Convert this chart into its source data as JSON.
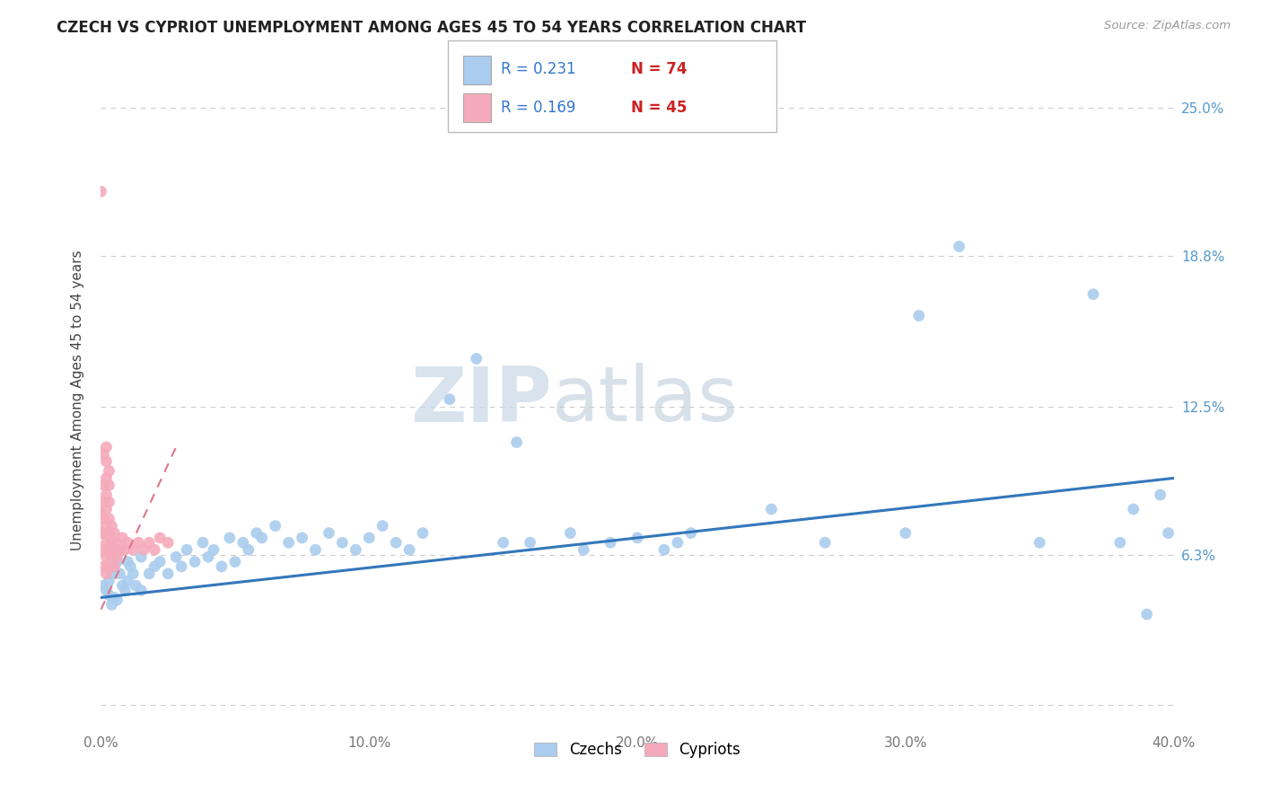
{
  "title": "CZECH VS CYPRIOT UNEMPLOYMENT AMONG AGES 45 TO 54 YEARS CORRELATION CHART",
  "source": "Source: ZipAtlas.com",
  "ylabel": "Unemployment Among Ages 45 to 54 years",
  "xlim": [
    0.0,
    0.4
  ],
  "ylim": [
    -0.01,
    0.265
  ],
  "xtick_vals": [
    0.0,
    0.1,
    0.2,
    0.3,
    0.4
  ],
  "xticklabels": [
    "0.0%",
    "10.0%",
    "20.0%",
    "30.0%",
    "40.0%"
  ],
  "ytick_vals": [
    0.0,
    0.063,
    0.125,
    0.188,
    0.25
  ],
  "yticklabels": [
    "",
    "6.3%",
    "12.5%",
    "18.8%",
    "25.0%"
  ],
  "czech_R": 0.231,
  "czech_N": 74,
  "cypriot_R": 0.169,
  "cypriot_N": 45,
  "czech_color": "#aaccee",
  "cypriot_color": "#f5aabb",
  "czech_line_color": "#3377bb",
  "cypriot_line_color": "#dd7788",
  "legend_R_color": "#3377cc",
  "legend_N_color": "#cc2222",
  "watermark_zip": "ZIP",
  "watermark_atlas": "atlas",
  "background_color": "#ffffff",
  "grid_color": "#cccccc",
  "czech_x": [
    0.001,
    0.002,
    0.003,
    0.003,
    0.004,
    0.004,
    0.005,
    0.005,
    0.006,
    0.006,
    0.007,
    0.008,
    0.009,
    0.01,
    0.01,
    0.011,
    0.012,
    0.013,
    0.015,
    0.015,
    0.018,
    0.02,
    0.022,
    0.025,
    0.028,
    0.03,
    0.032,
    0.035,
    0.038,
    0.04,
    0.042,
    0.045,
    0.048,
    0.05,
    0.053,
    0.055,
    0.058,
    0.06,
    0.065,
    0.07,
    0.075,
    0.08,
    0.085,
    0.09,
    0.095,
    0.1,
    0.105,
    0.11,
    0.115,
    0.12,
    0.13,
    0.14,
    0.15,
    0.155,
    0.16,
    0.175,
    0.18,
    0.19,
    0.2,
    0.21,
    0.215,
    0.22,
    0.25,
    0.27,
    0.3,
    0.305,
    0.32,
    0.35,
    0.37,
    0.38,
    0.385,
    0.39,
    0.395,
    0.398
  ],
  "czech_y": [
    0.05,
    0.048,
    0.052,
    0.046,
    0.055,
    0.042,
    0.058,
    0.045,
    0.06,
    0.044,
    0.055,
    0.05,
    0.048,
    0.052,
    0.06,
    0.058,
    0.055,
    0.05,
    0.062,
    0.048,
    0.055,
    0.058,
    0.06,
    0.055,
    0.062,
    0.058,
    0.065,
    0.06,
    0.068,
    0.062,
    0.065,
    0.058,
    0.07,
    0.06,
    0.068,
    0.065,
    0.072,
    0.07,
    0.075,
    0.068,
    0.07,
    0.065,
    0.072,
    0.068,
    0.065,
    0.07,
    0.075,
    0.068,
    0.065,
    0.072,
    0.128,
    0.145,
    0.068,
    0.11,
    0.068,
    0.072,
    0.065,
    0.068,
    0.07,
    0.065,
    0.068,
    0.072,
    0.082,
    0.068,
    0.072,
    0.163,
    0.192,
    0.068,
    0.172,
    0.068,
    0.082,
    0.038,
    0.088,
    0.072
  ],
  "cypriot_x": [
    0.0,
    0.0,
    0.0,
    0.001,
    0.001,
    0.001,
    0.001,
    0.001,
    0.001,
    0.001,
    0.002,
    0.002,
    0.002,
    0.002,
    0.002,
    0.002,
    0.002,
    0.002,
    0.002,
    0.003,
    0.003,
    0.003,
    0.003,
    0.003,
    0.003,
    0.003,
    0.004,
    0.004,
    0.004,
    0.005,
    0.005,
    0.005,
    0.006,
    0.006,
    0.007,
    0.008,
    0.009,
    0.01,
    0.012,
    0.014,
    0.016,
    0.018,
    0.02,
    0.022,
    0.025
  ],
  "cypriot_y": [
    0.072,
    0.08,
    0.215,
    0.058,
    0.065,
    0.072,
    0.078,
    0.085,
    0.092,
    0.105,
    0.055,
    0.062,
    0.068,
    0.075,
    0.082,
    0.088,
    0.095,
    0.102,
    0.108,
    0.058,
    0.065,
    0.072,
    0.078,
    0.085,
    0.092,
    0.098,
    0.062,
    0.068,
    0.075,
    0.058,
    0.065,
    0.072,
    0.062,
    0.068,
    0.065,
    0.07,
    0.065,
    0.068,
    0.065,
    0.068,
    0.065,
    0.068,
    0.065,
    0.07,
    0.068
  ],
  "czech_line_x": [
    0.0,
    0.4
  ],
  "czech_line_y": [
    0.045,
    0.095
  ],
  "cypriot_line_x": [
    0.0,
    0.028
  ],
  "cypriot_line_y": [
    0.04,
    0.108
  ]
}
